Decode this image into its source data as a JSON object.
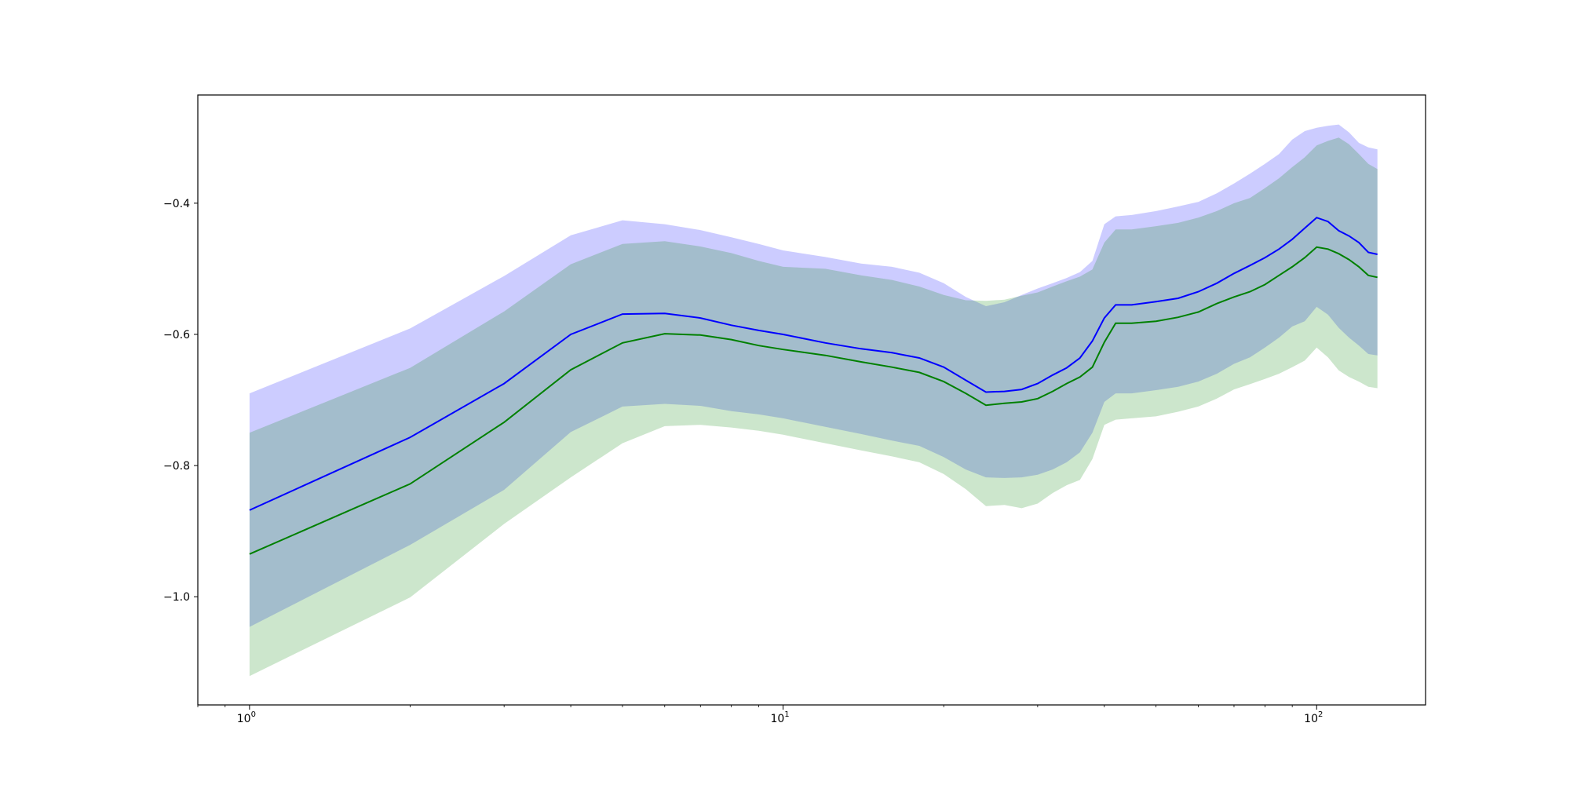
{
  "chart_data": {
    "type": "area",
    "title": "",
    "xlabel": "",
    "ylabel": "",
    "xscale": "log",
    "xlim": [
      0.8,
      160
    ],
    "ylim": [
      -1.165,
      -0.235
    ],
    "grid": false,
    "legend": "none",
    "x_ticks_major": [
      {
        "base": "10",
        "exp": "0",
        "value": 1
      },
      {
        "base": "10",
        "exp": "1",
        "value": 10
      },
      {
        "base": "10",
        "exp": "2",
        "value": 100
      }
    ],
    "y_ticks": [
      {
        "value": -0.4,
        "label": "−0.4"
      },
      {
        "value": -0.6,
        "label": "−0.6"
      },
      {
        "value": -0.8,
        "label": "−0.8"
      },
      {
        "value": -1.0,
        "label": "−1.0"
      }
    ],
    "series": [
      {
        "color": "#0000ff",
        "band_color": "#0000ff",
        "band_alpha": 0.2,
        "x": [
          1,
          2,
          3,
          4,
          5,
          6,
          7,
          8,
          9,
          10,
          12,
          14,
          16,
          18,
          20,
          22,
          24,
          26,
          28,
          30,
          32,
          34,
          36,
          38,
          40,
          42,
          45,
          50,
          55,
          60,
          65,
          70,
          75,
          80,
          85,
          90,
          95,
          100,
          105,
          110,
          115,
          120,
          125,
          130
        ],
        "mean": [
          -0.868,
          -0.757,
          -0.675,
          -0.6,
          -0.569,
          -0.568,
          -0.575,
          -0.586,
          -0.594,
          -0.6,
          -0.613,
          -0.622,
          -0.628,
          -0.636,
          -0.65,
          -0.67,
          -0.688,
          -0.687,
          -0.684,
          -0.675,
          -0.662,
          -0.651,
          -0.636,
          -0.61,
          -0.575,
          -0.555,
          -0.555,
          -0.55,
          -0.545,
          -0.535,
          -0.522,
          -0.507,
          -0.495,
          -0.483,
          -0.47,
          -0.455,
          -0.438,
          -0.422,
          -0.428,
          -0.442,
          -0.45,
          -0.46,
          -0.475,
          -0.478
        ],
        "upper": [
          -0.69,
          -0.591,
          -0.511,
          -0.449,
          -0.426,
          -0.432,
          -0.441,
          -0.452,
          -0.462,
          -0.472,
          -0.482,
          -0.492,
          -0.497,
          -0.506,
          -0.522,
          -0.543,
          -0.557,
          -0.551,
          -0.54,
          -0.53,
          -0.522,
          -0.514,
          -0.505,
          -0.488,
          -0.432,
          -0.42,
          -0.418,
          -0.412,
          -0.405,
          -0.398,
          -0.385,
          -0.37,
          -0.355,
          -0.34,
          -0.325,
          -0.303,
          -0.29,
          -0.285,
          -0.282,
          -0.28,
          -0.292,
          -0.308,
          -0.315,
          -0.318
        ],
        "lower": [
          -1.046,
          -0.921,
          -0.837,
          -0.749,
          -0.71,
          -0.706,
          -0.709,
          -0.717,
          -0.722,
          -0.728,
          -0.741,
          -0.752,
          -0.762,
          -0.77,
          -0.787,
          -0.806,
          -0.818,
          -0.819,
          -0.818,
          -0.814,
          -0.806,
          -0.795,
          -0.78,
          -0.75,
          -0.703,
          -0.69,
          -0.69,
          -0.685,
          -0.68,
          -0.672,
          -0.66,
          -0.645,
          -0.635,
          -0.62,
          -0.605,
          -0.588,
          -0.58,
          -0.558,
          -0.57,
          -0.59,
          -0.605,
          -0.617,
          -0.63,
          -0.632
        ]
      },
      {
        "color": "#008000",
        "band_color": "#008000",
        "band_alpha": 0.2,
        "x": [
          1,
          2,
          3,
          4,
          5,
          6,
          7,
          8,
          9,
          10,
          12,
          14,
          16,
          18,
          20,
          22,
          24,
          26,
          28,
          30,
          32,
          34,
          36,
          38,
          40,
          42,
          45,
          50,
          55,
          60,
          65,
          70,
          75,
          80,
          85,
          90,
          95,
          100,
          105,
          110,
          115,
          120,
          125,
          130
        ],
        "mean": [
          -0.935,
          -0.828,
          -0.734,
          -0.654,
          -0.613,
          -0.599,
          -0.601,
          -0.608,
          -0.617,
          -0.623,
          -0.632,
          -0.642,
          -0.65,
          -0.658,
          -0.672,
          -0.69,
          -0.708,
          -0.705,
          -0.703,
          -0.698,
          -0.687,
          -0.675,
          -0.665,
          -0.65,
          -0.612,
          -0.583,
          -0.583,
          -0.58,
          -0.574,
          -0.566,
          -0.553,
          -0.543,
          -0.535,
          -0.524,
          -0.51,
          -0.497,
          -0.483,
          -0.467,
          -0.47,
          -0.477,
          -0.486,
          -0.497,
          -0.51,
          -0.513
        ],
        "upper": [
          -0.75,
          -0.651,
          -0.565,
          -0.493,
          -0.462,
          -0.458,
          -0.466,
          -0.476,
          -0.488,
          -0.497,
          -0.5,
          -0.51,
          -0.517,
          -0.527,
          -0.54,
          -0.548,
          -0.549,
          -0.547,
          -0.541,
          -0.536,
          -0.527,
          -0.519,
          -0.512,
          -0.501,
          -0.46,
          -0.44,
          -0.44,
          -0.435,
          -0.43,
          -0.422,
          -0.412,
          -0.4,
          -0.392,
          -0.377,
          -0.362,
          -0.345,
          -0.33,
          -0.312,
          -0.305,
          -0.3,
          -0.31,
          -0.325,
          -0.34,
          -0.348
        ],
        "lower": [
          -1.121,
          -1.001,
          -0.889,
          -0.818,
          -0.766,
          -0.74,
          -0.738,
          -0.742,
          -0.747,
          -0.753,
          -0.766,
          -0.777,
          -0.786,
          -0.795,
          -0.813,
          -0.836,
          -0.862,
          -0.86,
          -0.865,
          -0.858,
          -0.842,
          -0.83,
          -0.822,
          -0.79,
          -0.738,
          -0.73,
          -0.728,
          -0.725,
          -0.718,
          -0.71,
          -0.698,
          -0.684,
          -0.676,
          -0.668,
          -0.66,
          -0.65,
          -0.64,
          -0.62,
          -0.635,
          -0.655,
          -0.665,
          -0.672,
          -0.68,
          -0.682
        ]
      }
    ]
  }
}
